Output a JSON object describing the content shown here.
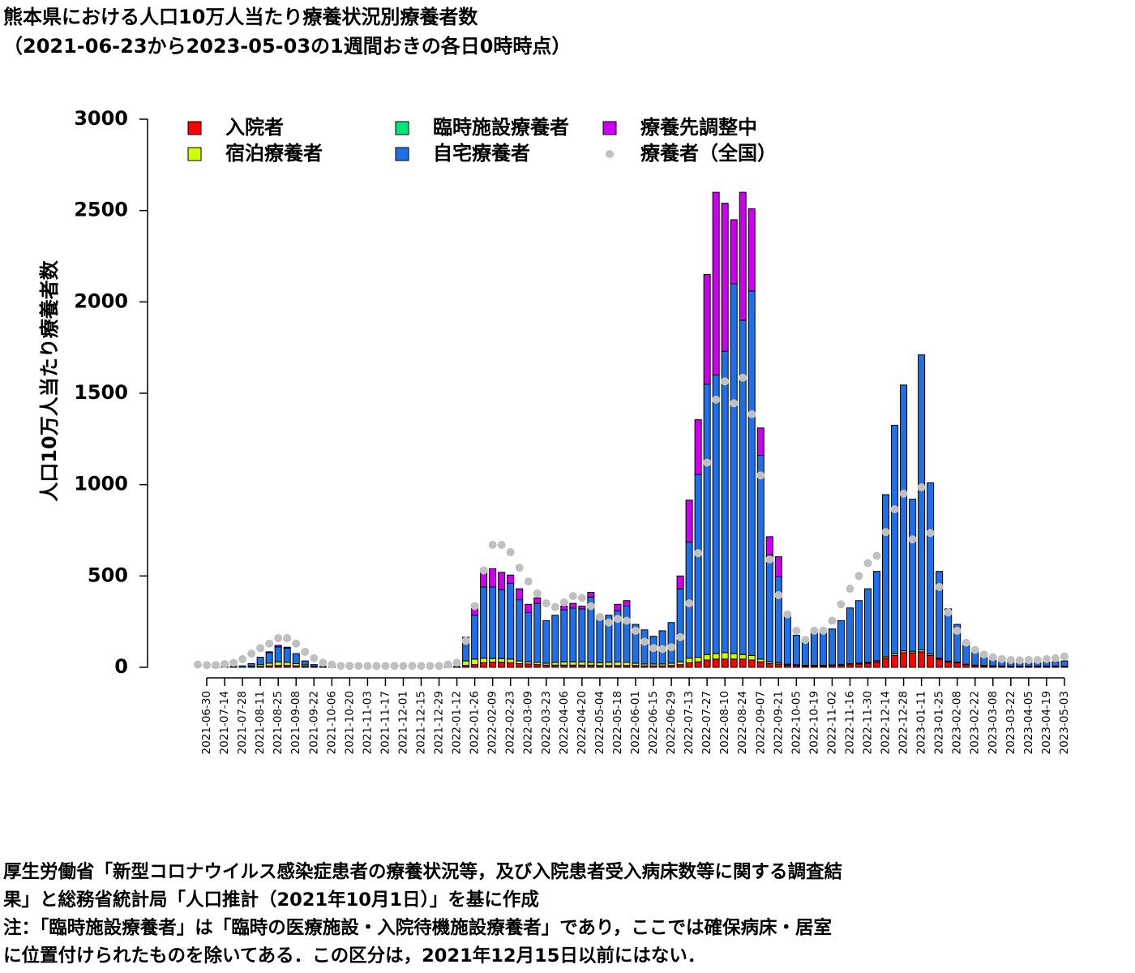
{
  "chart_data": {
    "type": "stacked_bar",
    "title": "熊本県における人口10万人当たり療養状況別療養者数",
    "subtitle": "（2021-06-23から2023-05-03の1週間おきの各日0時時点）",
    "y_label": "人口10万人当たり療養者数",
    "ylim": [
      0,
      3000
    ],
    "yticks": [
      0,
      500,
      1000,
      1500,
      2000,
      2500,
      3000
    ],
    "categories": [
      null,
      "2021-06-30",
      null,
      "2021-07-14",
      null,
      "2021-07-28",
      null,
      "2021-08-11",
      null,
      "2021-08-25",
      null,
      "2021-09-08",
      null,
      "2021-09-22",
      null,
      "2021-10-06",
      null,
      "2021-10-20",
      null,
      "2021-11-03",
      null,
      "2021-11-17",
      null,
      "2021-12-01",
      null,
      "2021-12-15",
      null,
      "2021-12-29",
      null,
      "2022-01-12",
      null,
      "2022-01-26",
      null,
      "2022-02-09",
      null,
      "2022-02-23",
      null,
      "2022-03-09",
      null,
      "2022-03-23",
      null,
      "2022-04-06",
      null,
      "2022-04-20",
      null,
      "2022-05-04",
      null,
      "2022-05-18",
      null,
      "2022-06-01",
      null,
      "2022-06-15",
      null,
      "2022-06-29",
      null,
      "2022-07-13",
      null,
      "2022-07-27",
      null,
      "2022-08-10",
      null,
      "2022-08-24",
      null,
      "2022-09-07",
      null,
      "2022-09-21",
      null,
      "2022-10-05",
      null,
      "2022-10-19",
      null,
      "2022-11-02",
      null,
      "2022-11-16",
      null,
      "2022-11-30",
      null,
      "2022-12-14",
      null,
      "2022-12-28",
      null,
      "2023-01-11",
      null,
      "2023-01-25",
      null,
      "2023-02-08",
      null,
      "2023-02-22",
      null,
      "2023-03-08",
      null,
      "2023-03-22",
      null,
      "2023-04-05",
      null,
      "2023-04-19",
      null,
      "2023-05-03"
    ],
    "series": [
      {
        "name": "入院者",
        "color": "#ff0000",
        "values": [
          0,
          0,
          0,
          0,
          0,
          0,
          2,
          5,
          8,
          10,
          10,
          8,
          5,
          3,
          0,
          0,
          0,
          0,
          0,
          0,
          0,
          0,
          0,
          0,
          0,
          0,
          0,
          0,
          0,
          1,
          10,
          15,
          25,
          28,
          28,
          25,
          20,
          18,
          15,
          12,
          12,
          12,
          12,
          12,
          12,
          10,
          10,
          10,
          10,
          10,
          8,
          8,
          8,
          10,
          15,
          25,
          30,
          40,
          45,
          45,
          45,
          45,
          40,
          30,
          20,
          18,
          12,
          10,
          8,
          8,
          8,
          10,
          12,
          15,
          18,
          22,
          30,
          50,
          65,
          80,
          80,
          85,
          65,
          45,
          30,
          25,
          15,
          10,
          8,
          6,
          5,
          4,
          4,
          4,
          4,
          5,
          5,
          5
        ]
      },
      {
        "name": "宿泊療養者",
        "color": "#ccff00",
        "values": [
          0,
          0,
          0,
          0,
          0,
          0,
          5,
          10,
          15,
          20,
          18,
          12,
          8,
          3,
          0,
          0,
          0,
          0,
          0,
          0,
          0,
          0,
          0,
          0,
          0,
          0,
          0,
          0,
          0,
          2,
          25,
          30,
          25,
          20,
          20,
          20,
          15,
          12,
          12,
          10,
          15,
          18,
          18,
          18,
          15,
          15,
          18,
          20,
          18,
          12,
          10,
          10,
          10,
          12,
          15,
          25,
          25,
          30,
          30,
          35,
          30,
          25,
          25,
          15,
          10,
          8,
          5,
          4,
          3,
          3,
          3,
          3,
          4,
          5,
          5,
          5,
          6,
          8,
          10,
          10,
          8,
          10,
          8,
          5,
          4,
          3,
          2,
          2,
          2,
          2,
          2,
          2,
          2,
          2,
          2,
          2,
          2,
          2
        ]
      },
      {
        "name": "臨時施設療養者",
        "color": "#00e67a",
        "values": [
          null,
          null,
          null,
          null,
          null,
          null,
          null,
          null,
          null,
          null,
          null,
          null,
          null,
          null,
          null,
          null,
          null,
          null,
          null,
          null,
          null,
          null,
          null,
          null,
          null,
          null,
          0,
          0,
          0,
          0,
          0,
          0,
          0,
          0,
          0,
          0,
          0,
          0,
          0,
          0,
          0,
          0,
          0,
          0,
          0,
          0,
          0,
          0,
          0,
          0,
          0,
          0,
          0,
          0,
          0,
          0,
          0,
          0,
          0,
          0,
          0,
          0,
          0,
          0,
          0,
          0,
          0,
          0,
          0,
          0,
          0,
          0,
          0,
          0,
          0,
          0,
          0,
          0,
          0,
          0,
          0,
          0,
          0,
          0,
          0,
          0,
          0,
          0,
          0,
          0,
          0,
          0,
          0,
          0,
          0,
          0,
          0,
          0
        ]
      },
      {
        "name": "自宅療養者",
        "color": "#1f6fe8",
        "values": [
          0,
          0,
          2,
          3,
          5,
          8,
          13,
          40,
          57,
          82,
          77,
          55,
          22,
          9,
          5,
          3,
          2,
          2,
          1,
          1,
          1,
          1,
          1,
          1,
          1,
          1,
          1,
          1,
          1,
          2,
          130,
          240,
          390,
          392,
          377,
          415,
          335,
          270,
          323,
          233,
          258,
          285,
          295,
          290,
          358,
          255,
          257,
          280,
          307,
          213,
          187,
          152,
          182,
          223,
          400,
          635,
          1000,
          1480,
          1525,
          1650,
          2025,
          1830,
          1995,
          1115,
          585,
          469,
          273,
          161,
          134,
          179,
          184,
          197,
          239,
          305,
          342,
          403,
          489,
          887,
          1250,
          1455,
          832,
          1615,
          937,
          475,
          286,
          207,
          113,
          73,
          45,
          32,
          23,
          19,
          16,
          16,
          19,
          21,
          23,
          28
        ]
      },
      {
        "name": "療養先調整中",
        "color": "#cc00ee",
        "values": [
          0,
          0,
          0,
          0,
          0,
          0,
          0,
          0,
          5,
          8,
          5,
          0,
          0,
          0,
          0,
          0,
          0,
          0,
          0,
          0,
          0,
          0,
          0,
          0,
          0,
          0,
          0,
          0,
          0,
          0,
          0,
          60,
          100,
          100,
          95,
          45,
          60,
          45,
          30,
          0,
          0,
          20,
          25,
          15,
          25,
          0,
          0,
          35,
          30,
          0,
          0,
          0,
          0,
          0,
          70,
          230,
          300,
          600,
          1000,
          810,
          350,
          700,
          450,
          150,
          100,
          110,
          0,
          0,
          0,
          0,
          0,
          0,
          0,
          0,
          0,
          0,
          0,
          0,
          0,
          0,
          0,
          0,
          0,
          0,
          0,
          0,
          0,
          0,
          0,
          0,
          0,
          0,
          0,
          0,
          0,
          0,
          0,
          0
        ]
      },
      {
        "name": "療養者（全国）",
        "color": "#c0c0c0",
        "type": "point",
        "values": [
          15,
          12,
          12,
          18,
          25,
          45,
          75,
          105,
          130,
          160,
          160,
          130,
          85,
          50,
          25,
          15,
          8,
          8,
          8,
          8,
          8,
          8,
          8,
          8,
          8,
          8,
          8,
          8,
          15,
          25,
          145,
          335,
          530,
          670,
          670,
          630,
          545,
          470,
          405,
          350,
          330,
          355,
          390,
          380,
          335,
          275,
          245,
          265,
          255,
          200,
          140,
          105,
          100,
          110,
          165,
          350,
          625,
          1120,
          1465,
          1565,
          1445,
          1585,
          1385,
          1050,
          590,
          395,
          290,
          200,
          150,
          200,
          200,
          255,
          345,
          430,
          500,
          570,
          610,
          740,
          865,
          950,
          700,
          985,
          735,
          440,
          300,
          200,
          135,
          95,
          70,
          55,
          45,
          40,
          38,
          40,
          40,
          45,
          50,
          60
        ]
      }
    ],
    "notes": [
      "厚生労働省「新型コロナウイルス感染症患者の療養状況等，及び入院患者受入病床数等に関する調査結",
      "果」と総務省統計局「人口推計（2021年10月1日）」を基に作成",
      "注：「臨時施設療養者」は「臨時の医療施設・入院待機施設療養者」であり，ここでは確保病床・居室",
      "に位置付けられたものを除いてある．この区分は，2021年12月15日以前にはない．"
    ]
  }
}
